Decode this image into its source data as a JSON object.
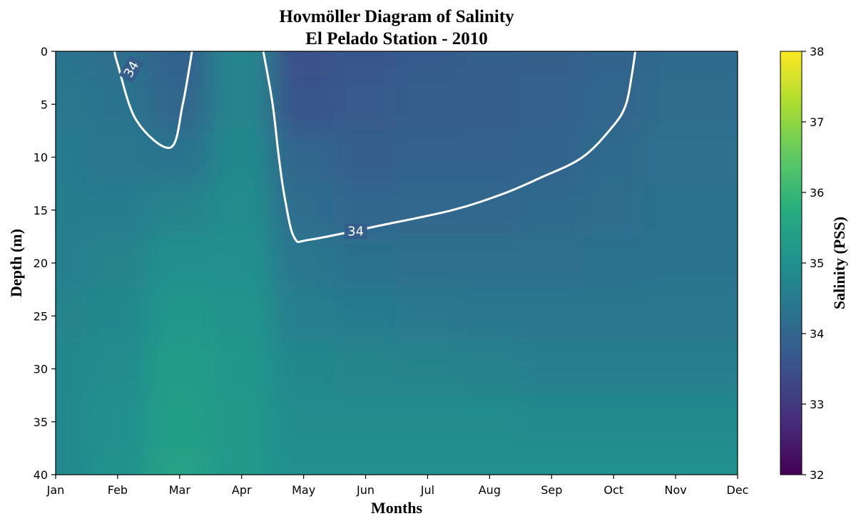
{
  "chart_data": {
    "type": "heatmap",
    "title": "Hovmöller Diagram of Salinity",
    "subtitle": "El Pelado Station - 2010",
    "xlabel": "Months",
    "ylabel": "Depth (m)",
    "colorbar_label": "Salinity (PSS)",
    "colormap": "viridis",
    "clim": [
      32,
      38
    ],
    "x_ticks": [
      "Jan",
      "Feb",
      "Mar",
      "Apr",
      "May",
      "Jun",
      "Jul",
      "Aug",
      "Sep",
      "Oct",
      "Nov",
      "Dec"
    ],
    "y_ticks": [
      0,
      5,
      10,
      15,
      20,
      25,
      30,
      35,
      40
    ],
    "ylim": [
      40,
      0
    ],
    "y_inverted": true,
    "colorbar_ticks": [
      32,
      33,
      34,
      35,
      36,
      37,
      38
    ],
    "depths": [
      0,
      5,
      10,
      15,
      20,
      25,
      30,
      35,
      40
    ],
    "salinity": [
      [
        34.3,
        34.2,
        33.9,
        34.7,
        33.5,
        33.65,
        33.75,
        33.8,
        33.85,
        33.95,
        34.1,
        34.1
      ],
      [
        34.4,
        34.3,
        34.0,
        34.7,
        33.6,
        33.7,
        33.8,
        33.85,
        33.9,
        34.0,
        34.15,
        34.15
      ],
      [
        34.5,
        34.4,
        34.3,
        34.8,
        34.0,
        33.85,
        33.9,
        33.9,
        33.95,
        34.1,
        34.2,
        34.2
      ],
      [
        34.55,
        34.55,
        34.7,
        34.9,
        34.15,
        34.0,
        34.05,
        34.05,
        34.1,
        34.15,
        34.25,
        34.25
      ],
      [
        34.6,
        34.7,
        35.0,
        35.0,
        34.4,
        34.25,
        34.2,
        34.2,
        34.2,
        34.25,
        34.3,
        34.3
      ],
      [
        34.7,
        34.8,
        35.15,
        35.1,
        34.6,
        34.5,
        34.45,
        34.4,
        34.4,
        34.4,
        34.4,
        34.4
      ],
      [
        34.8,
        34.9,
        35.3,
        35.15,
        34.8,
        34.75,
        34.7,
        34.65,
        34.6,
        34.6,
        34.6,
        34.6
      ],
      [
        34.8,
        35.0,
        35.4,
        35.2,
        34.9,
        34.9,
        34.9,
        34.9,
        34.85,
        34.85,
        34.85,
        34.85
      ],
      [
        34.8,
        35.05,
        35.45,
        35.2,
        35.0,
        35.0,
        35.0,
        35.0,
        35.0,
        35.0,
        35.0,
        35.0
      ]
    ],
    "contours": [
      {
        "level": 34,
        "label": "34",
        "points": [
          [
            0.95,
            0
          ],
          [
            1.0,
            1.2
          ],
          [
            1.3,
            6.5
          ],
          [
            1.85,
            9.1
          ],
          [
            2.05,
            5.0
          ],
          [
            2.2,
            0
          ]
        ]
      },
      {
        "level": 34,
        "label": "34",
        "points": [
          [
            3.35,
            0
          ],
          [
            3.5,
            5.0
          ],
          [
            3.6,
            10.0
          ],
          [
            3.7,
            14.0
          ],
          [
            3.85,
            17.6
          ],
          [
            4.1,
            17.8
          ],
          [
            5.2,
            16.5
          ],
          [
            6.4,
            15.0
          ],
          [
            7.2,
            13.5
          ],
          [
            7.8,
            12.0
          ],
          [
            8.5,
            10.0
          ],
          [
            9.0,
            7.0
          ],
          [
            9.2,
            5.0
          ],
          [
            9.3,
            2.0
          ],
          [
            9.35,
            0
          ]
        ]
      }
    ],
    "contour_label_positions": [
      [
        1.22,
        1.7,
        -60
      ],
      [
        4.84,
        17.0,
        0
      ]
    ]
  }
}
